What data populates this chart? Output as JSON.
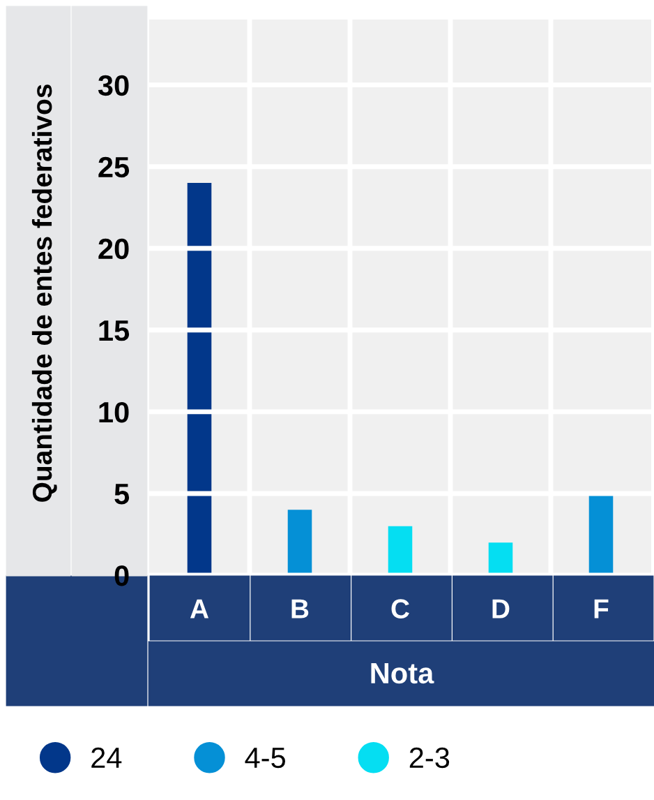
{
  "chart_data": {
    "type": "bar",
    "xlabel": "Nota",
    "ylabel": "Quantidade de entes federativos",
    "categories": [
      "A",
      "B",
      "C",
      "D",
      "F"
    ],
    "series": [
      {
        "name": "24",
        "color": "#02378a",
        "values": [
          24,
          null,
          null,
          null,
          null
        ]
      },
      {
        "name": "4-5",
        "color": "#0590d6",
        "values": [
          null,
          4,
          null,
          null,
          5
        ]
      },
      {
        "name": "2-3",
        "color": "#05def2",
        "values": [
          null,
          null,
          3,
          2,
          null
        ]
      }
    ],
    "ylim": [
      0,
      34
    ],
    "yticks": [
      0,
      5,
      10,
      15,
      20,
      25,
      30
    ],
    "grid": true,
    "legend": "bottom"
  }
}
